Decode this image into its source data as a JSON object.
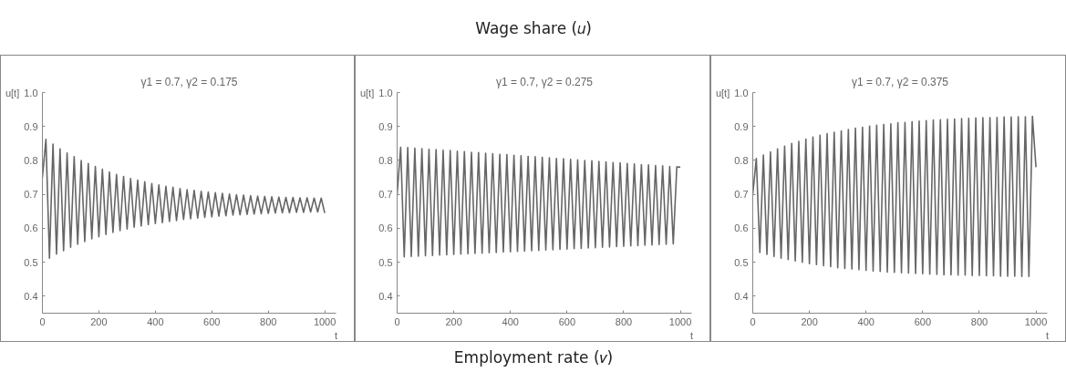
{
  "chart_data": [
    {
      "type": "other",
      "title": "Wage share (𝑢)"
    },
    {
      "type": "line",
      "title": "γ1 = 0.7, γ2 = 0.175",
      "xlabel": "t",
      "ylabel": "u[t]",
      "xlim": [
        0,
        1040
      ],
      "ylim": [
        0.35,
        1.0
      ],
      "xticks": [
        0,
        200,
        400,
        600,
        800,
        1000
      ],
      "yticks": [
        {
          "value": 0.4,
          "label": "0.4"
        },
        {
          "value": 0.5,
          "label": "0.5"
        },
        {
          "value": 0.6,
          "label": "0.6"
        },
        {
          "value": 0.7,
          "label": "0.7"
        },
        {
          "value": 0.8,
          "label": "0.8"
        },
        {
          "value": 0.9,
          "label": "0.9"
        },
        {
          "value": 1.0,
          "label": "1.0"
        }
      ],
      "grid": false,
      "marker": "none",
      "line_style": "solid",
      "x": [
        0,
        12.5,
        25,
        37.5,
        50,
        62.5,
        75,
        87.5,
        100,
        112.5,
        125,
        137.5,
        150,
        162.5,
        175,
        187.5,
        200,
        212.5,
        225,
        237.5,
        250,
        262.5,
        275,
        287.5,
        300,
        312.5,
        325,
        337.5,
        350,
        362.5,
        375,
        387.5,
        400,
        412.5,
        425,
        437.5,
        450,
        462.5,
        475,
        487.5,
        500,
        512.5,
        525,
        537.5,
        550,
        562.5,
        575,
        587.5,
        600,
        612.5,
        625,
        637.5,
        650,
        662.5,
        675,
        687.5,
        700,
        712.5,
        725,
        737.5,
        750,
        762.5,
        775,
        787.5,
        800,
        812.5,
        825,
        837.5,
        850,
        862.5,
        875,
        887.5,
        900,
        912.5,
        925,
        937.5,
        950,
        962.5,
        975,
        987.5,
        1000
      ],
      "series": [
        {
          "color": "#666666",
          "values": [
            0.75,
            0.862,
            0.512,
            0.848,
            0.524,
            0.834,
            0.534,
            0.822,
            0.544,
            0.811,
            0.553,
            0.8,
            0.561,
            0.791,
            0.569,
            0.782,
            0.575,
            0.774,
            0.582,
            0.766,
            0.588,
            0.759,
            0.593,
            0.753,
            0.598,
            0.747,
            0.603,
            0.742,
            0.607,
            0.737,
            0.611,
            0.732,
            0.614,
            0.728,
            0.617,
            0.724,
            0.62,
            0.721,
            0.623,
            0.717,
            0.626,
            0.714,
            0.628,
            0.712,
            0.63,
            0.709,
            0.632,
            0.707,
            0.634,
            0.705,
            0.636,
            0.703,
            0.637,
            0.701,
            0.639,
            0.699,
            0.64,
            0.698,
            0.641,
            0.696,
            0.642,
            0.695,
            0.643,
            0.694,
            0.644,
            0.693,
            0.645,
            0.692,
            0.646,
            0.691,
            0.646,
            0.691,
            0.647,
            0.69,
            0.647,
            0.69,
            0.648,
            0.689,
            0.648,
            0.689,
            0.645
          ]
        }
      ]
    },
    {
      "type": "line",
      "title": "γ1 = 0.7, γ2 = 0.275",
      "xlabel": "t",
      "ylabel": "u[t]",
      "xlim": [
        0,
        1040
      ],
      "ylim": [
        0.35,
        1.0
      ],
      "xticks": [
        0,
        200,
        400,
        600,
        800,
        1000
      ],
      "yticks": [
        {
          "value": 0.4,
          "label": "0.4"
        },
        {
          "value": 0.5,
          "label": "0.5"
        },
        {
          "value": 0.6,
          "label": "0.6"
        },
        {
          "value": 0.7,
          "label": "0.7"
        },
        {
          "value": 0.8,
          "label": "0.8"
        },
        {
          "value": 0.9,
          "label": "0.9"
        },
        {
          "value": 1.0,
          "label": "1.0"
        }
      ],
      "grid": false,
      "marker": "none",
      "line_style": "solid",
      "x": [
        0,
        12.5,
        25,
        37.5,
        50,
        62.5,
        75,
        87.5,
        100,
        112.5,
        125,
        137.5,
        150,
        162.5,
        175,
        187.5,
        200,
        212.5,
        225,
        237.5,
        250,
        262.5,
        275,
        287.5,
        300,
        312.5,
        325,
        337.5,
        350,
        362.5,
        375,
        387.5,
        400,
        412.5,
        425,
        437.5,
        450,
        462.5,
        475,
        487.5,
        500,
        512.5,
        525,
        537.5,
        550,
        562.5,
        575,
        587.5,
        600,
        612.5,
        625,
        637.5,
        650,
        662.5,
        675,
        687.5,
        700,
        712.5,
        725,
        737.5,
        750,
        762.5,
        775,
        787.5,
        800,
        812.5,
        825,
        837.5,
        850,
        862.5,
        875,
        887.5,
        900,
        912.5,
        925,
        937.5,
        950,
        962.5,
        975,
        987.5,
        1000
      ],
      "series": [
        {
          "color": "#666666",
          "values": [
            0.7,
            0.839,
            0.516,
            0.838,
            0.517,
            0.836,
            0.518,
            0.835,
            0.519,
            0.833,
            0.52,
            0.832,
            0.521,
            0.83,
            0.522,
            0.829,
            0.523,
            0.827,
            0.524,
            0.826,
            0.525,
            0.824,
            0.526,
            0.823,
            0.527,
            0.821,
            0.528,
            0.82,
            0.529,
            0.818,
            0.53,
            0.817,
            0.531,
            0.815,
            0.532,
            0.814,
            0.533,
            0.812,
            0.534,
            0.811,
            0.535,
            0.809,
            0.536,
            0.808,
            0.537,
            0.806,
            0.538,
            0.805,
            0.539,
            0.803,
            0.54,
            0.802,
            0.541,
            0.8,
            0.542,
            0.799,
            0.543,
            0.797,
            0.544,
            0.796,
            0.545,
            0.794,
            0.546,
            0.793,
            0.547,
            0.791,
            0.548,
            0.79,
            0.549,
            0.788,
            0.55,
            0.787,
            0.551,
            0.785,
            0.552,
            0.784,
            0.553,
            0.782,
            0.554,
            0.781,
            0.78
          ]
        }
      ]
    },
    {
      "type": "line",
      "title": "γ1 = 0.7, γ2 = 0.375",
      "xlabel": "t",
      "ylabel": "u[t]",
      "xlim": [
        0,
        1040
      ],
      "ylim": [
        0.35,
        1.0
      ],
      "xticks": [
        0,
        200,
        400,
        600,
        800,
        1000
      ],
      "yticks": [
        {
          "value": 0.4,
          "label": "0.4"
        },
        {
          "value": 0.5,
          "label": "0.5"
        },
        {
          "value": 0.6,
          "label": "0.6"
        },
        {
          "value": 0.7,
          "label": "0.7"
        },
        {
          "value": 0.8,
          "label": "0.8"
        },
        {
          "value": 0.9,
          "label": "0.9"
        },
        {
          "value": 1.0,
          "label": "1.0"
        }
      ],
      "grid": false,
      "marker": "none",
      "line_style": "solid",
      "x": [
        0,
        12.5,
        25,
        37.5,
        50,
        62.5,
        75,
        87.5,
        100,
        112.5,
        125,
        137.5,
        150,
        162.5,
        175,
        187.5,
        200,
        212.5,
        225,
        237.5,
        250,
        262.5,
        275,
        287.5,
        300,
        312.5,
        325,
        337.5,
        350,
        362.5,
        375,
        387.5,
        400,
        412.5,
        425,
        437.5,
        450,
        462.5,
        475,
        487.5,
        500,
        512.5,
        525,
        537.5,
        550,
        562.5,
        575,
        587.5,
        600,
        612.5,
        625,
        637.5,
        650,
        662.5,
        675,
        687.5,
        700,
        712.5,
        725,
        737.5,
        750,
        762.5,
        775,
        787.5,
        800,
        812.5,
        825,
        837.5,
        850,
        862.5,
        875,
        887.5,
        900,
        912.5,
        925,
        937.5,
        950,
        962.5,
        975,
        987.5,
        1000
      ],
      "series": [
        {
          "color": "#666666",
          "values": [
            0.7,
            0.806,
            0.529,
            0.816,
            0.523,
            0.825,
            0.517,
            0.834,
            0.512,
            0.842,
            0.508,
            0.85,
            0.504,
            0.856,
            0.5,
            0.863,
            0.496,
            0.869,
            0.493,
            0.874,
            0.49,
            0.879,
            0.487,
            0.883,
            0.484,
            0.887,
            0.482,
            0.891,
            0.48,
            0.895,
            0.478,
            0.898,
            0.476,
            0.901,
            0.474,
            0.904,
            0.473,
            0.906,
            0.471,
            0.908,
            0.47,
            0.911,
            0.469,
            0.912,
            0.468,
            0.914,
            0.467,
            0.916,
            0.466,
            0.917,
            0.465,
            0.919,
            0.464,
            0.92,
            0.463,
            0.921,
            0.463,
            0.922,
            0.462,
            0.923,
            0.462,
            0.924,
            0.461,
            0.925,
            0.461,
            0.926,
            0.46,
            0.926,
            0.46,
            0.927,
            0.459,
            0.928,
            0.459,
            0.928,
            0.459,
            0.929,
            0.458,
            0.929,
            0.458,
            0.93,
            0.78
          ]
        }
      ]
    },
    {
      "type": "other",
      "title": "Employment rate (𝑣)"
    }
  ]
}
